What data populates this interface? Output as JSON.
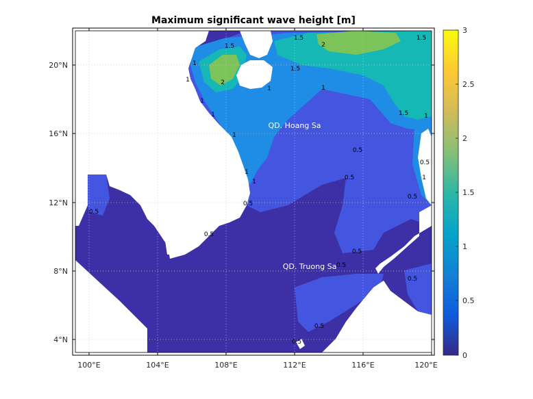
{
  "title": "Maximum significant wave height [m]",
  "x_ticks": [
    "100°E",
    "104°E",
    "108°E",
    "112°E",
    "116°E",
    "120°E"
  ],
  "y_ticks": [
    "20°N",
    "16°N",
    "12°N",
    "8°N",
    "4°N"
  ],
  "place_labels": [
    "QD. Hoang Sa",
    "QD. Truong Sa"
  ],
  "colorbar": {
    "ticks": [
      "3",
      "2.5",
      "2",
      "1.5",
      "1",
      "0.5",
      "0"
    ],
    "min": 0,
    "max": 3,
    "colors": [
      "#352a87",
      "#0f5cdd",
      "#1481d6",
      "#06a4ca",
      "#2eb7a4",
      "#87bf77",
      "#d1bb59",
      "#fec832",
      "#f9fb0e"
    ]
  },
  "contour_labels": [
    "1.5",
    "1.5",
    "1.5",
    "2",
    "2",
    "1.5",
    "1",
    "1",
    "1",
    "1",
    "1",
    "1",
    "1",
    "1.5",
    "1",
    "0.5",
    "0.5",
    "0.5",
    "0.5",
    "0.5",
    "0.5",
    "0.5",
    "0.5",
    "0.5",
    "0.5",
    "0.5",
    "0.5",
    "1",
    "1",
    "1"
  ],
  "map": {
    "land_color": "#ffffff",
    "level_colors": {
      "0-0.5": "#3d2fa6",
      "0.5-1": "#4455e0",
      "1-1.5": "#1f8ce6",
      "1.5-2": "#16b8b5",
      "2-2.5": "#7cc45a"
    }
  }
}
